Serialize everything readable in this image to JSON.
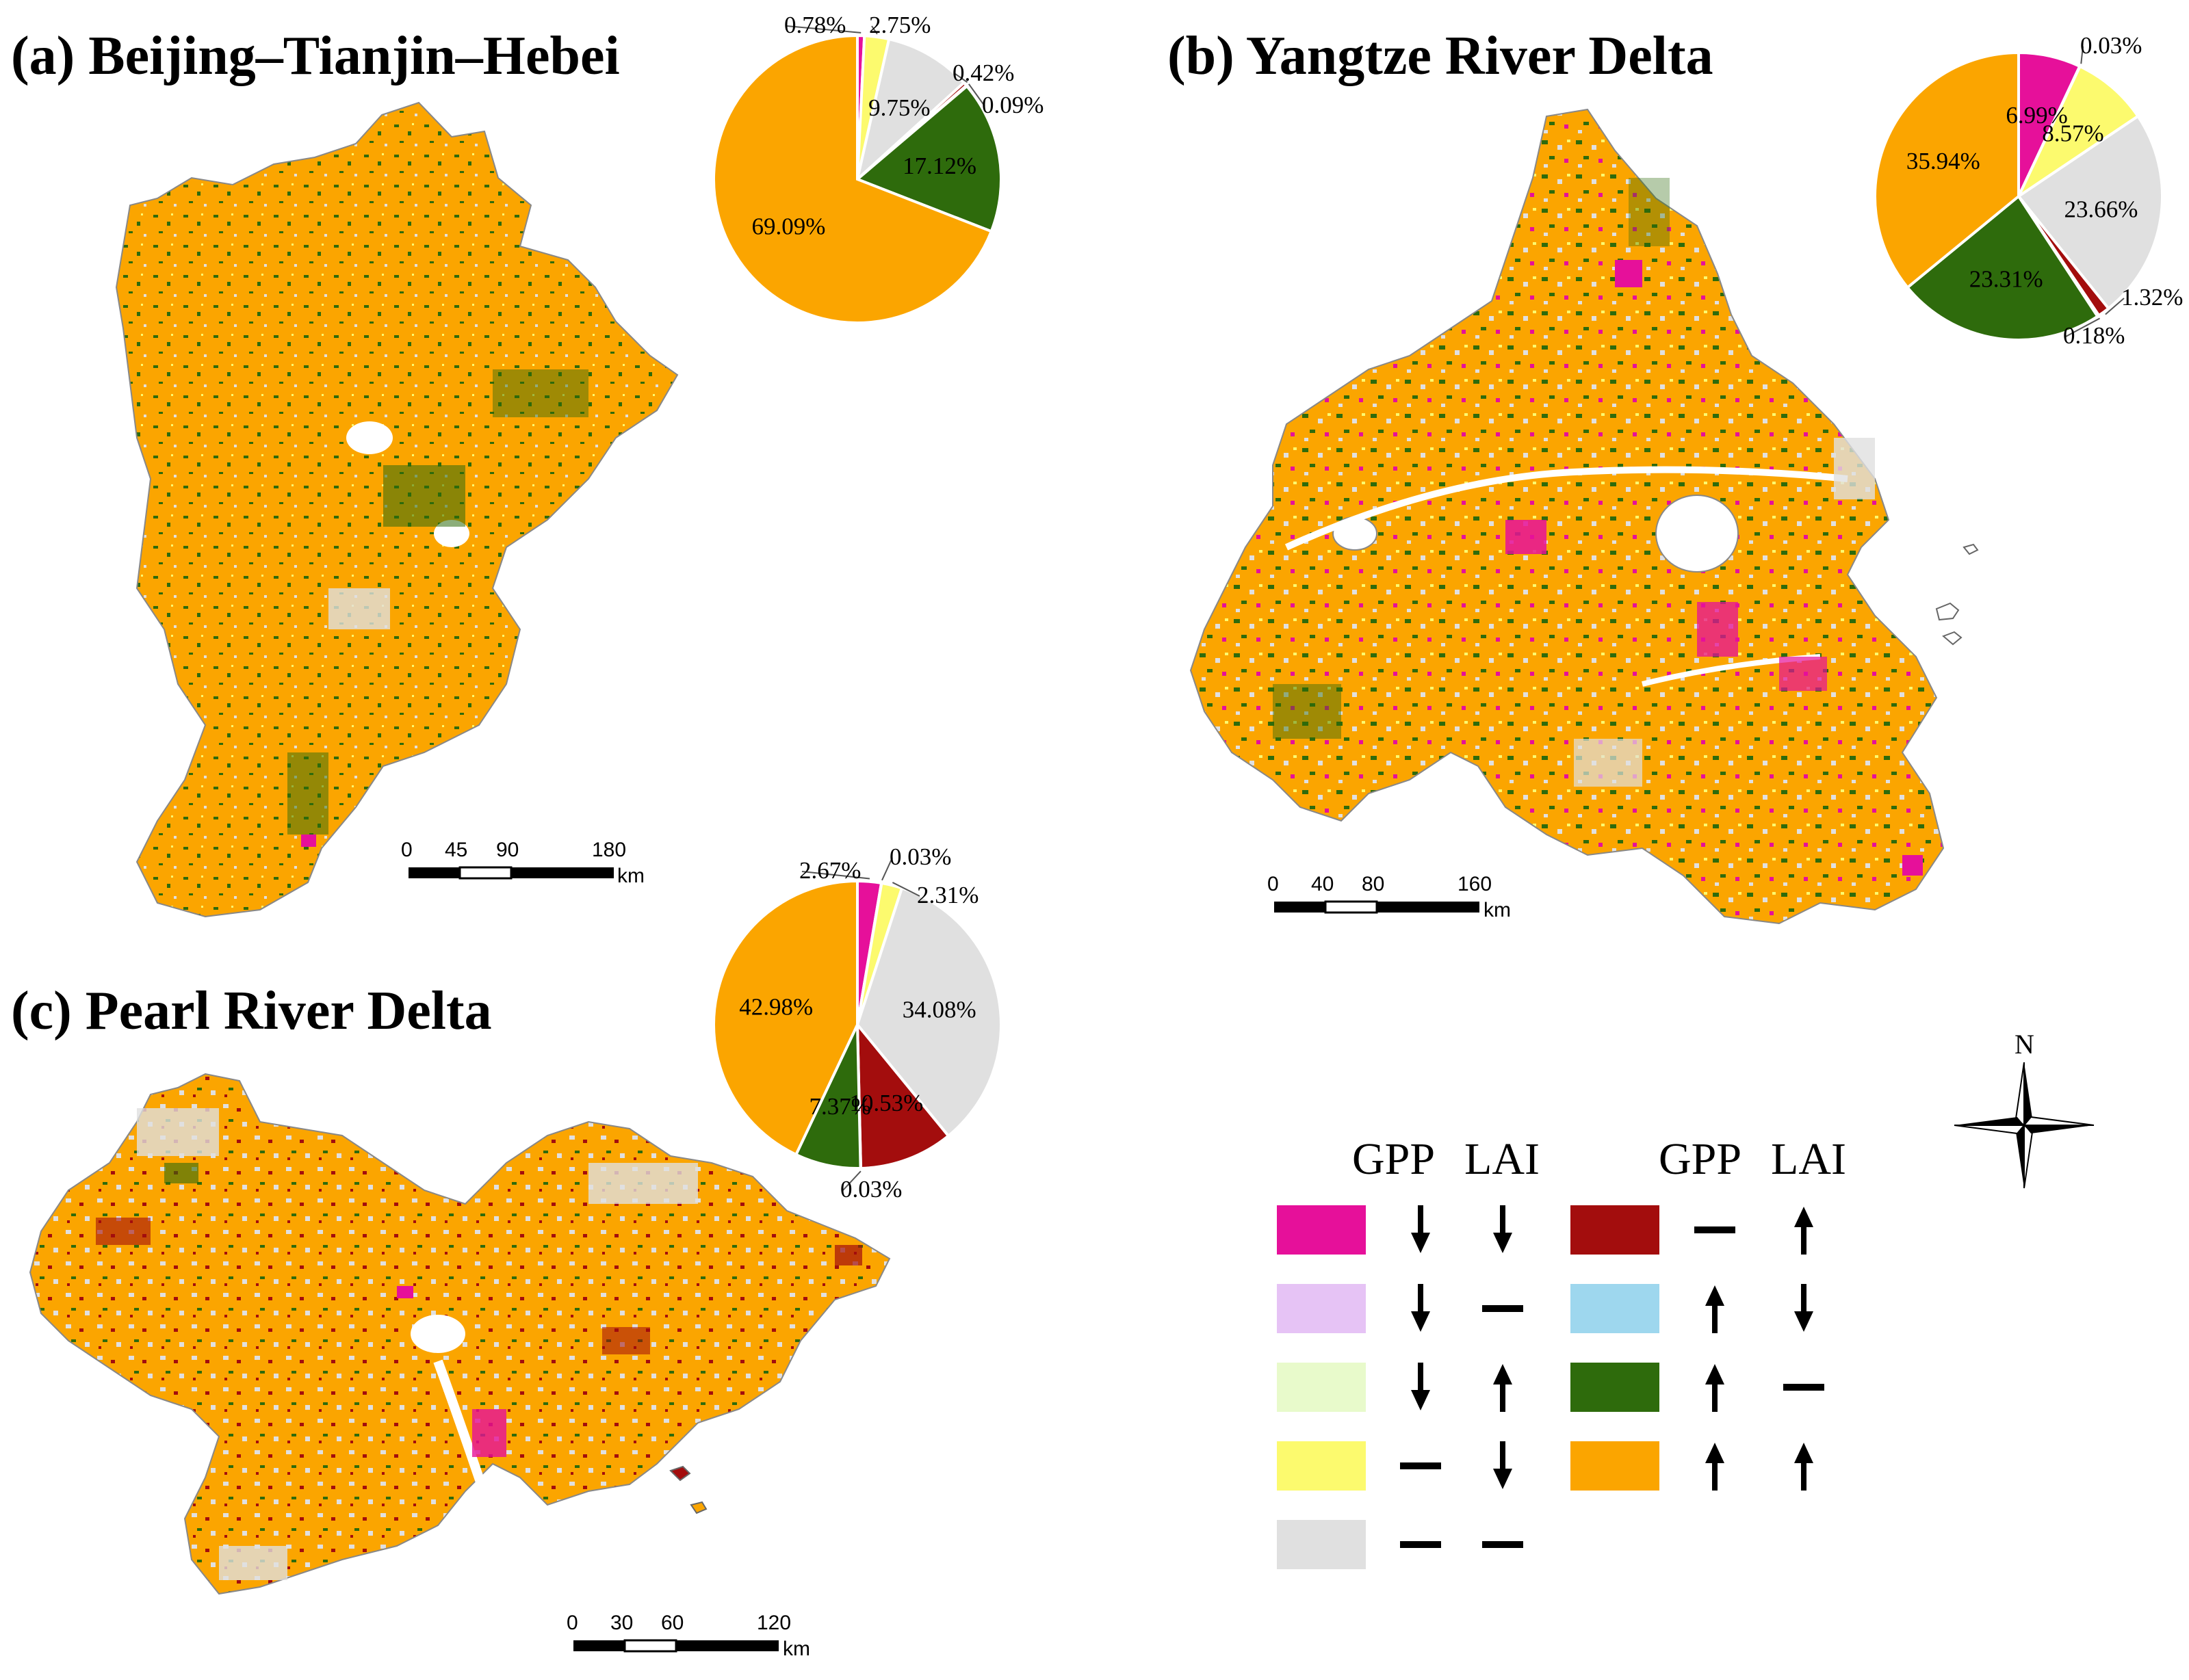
{
  "colors": {
    "magenta": "#E6109A",
    "lavender": "#E6C3F5",
    "palegreen": "#E8FACB",
    "yellow": "#FCFA6E",
    "lightgray": "#E0E0E0",
    "darkred": "#A30D0D",
    "skyblue": "#9ED7EE",
    "darkgreen": "#2E6B0C",
    "orange": "#FBA500"
  },
  "panels": {
    "a": {
      "title": "(a) Beijing–Tianjin–Hebei",
      "scale": {
        "ticks": [
          "0",
          "45",
          "90",
          "180"
        ],
        "unit": "km"
      }
    },
    "b": {
      "title": "(b) Yangtze River Delta",
      "scale": {
        "ticks": [
          "0",
          "40",
          "80",
          "160"
        ],
        "unit": "km"
      }
    },
    "c": {
      "title": "(c) Pearl River Delta",
      "scale": {
        "ticks": [
          "0",
          "30",
          "60",
          "120"
        ],
        "unit": "km"
      }
    }
  },
  "chart_data": [
    {
      "type": "pie",
      "title": "(a) Beijing–Tianjin–Hebei",
      "slices": [
        {
          "class": "magenta",
          "value": 0.78,
          "label": "0.78%"
        },
        {
          "class": "yellow",
          "value": 2.75,
          "label": "2.75%"
        },
        {
          "class": "lightgray",
          "value": 9.75,
          "label": "9.75%"
        },
        {
          "class": "darkred",
          "value": 0.42,
          "label": "0.42%"
        },
        {
          "class": "skyblue",
          "value": 0.09,
          "label": "0.09%"
        },
        {
          "class": "darkgreen",
          "value": 17.12,
          "label": "17.12%"
        },
        {
          "class": "orange",
          "value": 69.09,
          "label": "69.09%"
        }
      ]
    },
    {
      "type": "pie",
      "title": "(b) Yangtze River Delta",
      "slices": [
        {
          "class": "magenta",
          "value": 6.99,
          "label": "6.99%"
        },
        {
          "class": "palegreen",
          "value": 0.03,
          "label": "0.03%"
        },
        {
          "class": "yellow",
          "value": 8.57,
          "label": "8.57%"
        },
        {
          "class": "lightgray",
          "value": 23.66,
          "label": "23.66%"
        },
        {
          "class": "darkred",
          "value": 1.32,
          "label": "1.32%"
        },
        {
          "class": "skyblue",
          "value": 0.18,
          "label": "0.18%"
        },
        {
          "class": "darkgreen",
          "value": 23.31,
          "label": "23.31%"
        },
        {
          "class": "orange",
          "value": 35.94,
          "label": "35.94%"
        }
      ]
    },
    {
      "type": "pie",
      "title": "(c) Pearl River Delta",
      "slices": [
        {
          "class": "magenta",
          "value": 2.67,
          "label": "2.67%"
        },
        {
          "class": "palegreen",
          "value": 0.03,
          "label": "0.03%"
        },
        {
          "class": "yellow",
          "value": 2.31,
          "label": "2.31%"
        },
        {
          "class": "lightgray",
          "value": 34.08,
          "label": "34.08%"
        },
        {
          "class": "darkred",
          "value": 10.53,
          "label": "10.53%"
        },
        {
          "class": "skyblue",
          "value": 0.03,
          "label": "0.03%"
        },
        {
          "class": "darkgreen",
          "value": 7.37,
          "label": "7.37%"
        },
        {
          "class": "orange",
          "value": 42.98,
          "label": "42.98%"
        }
      ]
    }
  ],
  "legend": {
    "header_gpp": "GPP",
    "header_lai": "LAI",
    "left": [
      {
        "class": "magenta",
        "gpp": "down",
        "lai": "down"
      },
      {
        "class": "lavender",
        "gpp": "down",
        "lai": "flat"
      },
      {
        "class": "palegreen",
        "gpp": "down",
        "lai": "up"
      },
      {
        "class": "yellow",
        "gpp": "flat",
        "lai": "down"
      },
      {
        "class": "lightgray",
        "gpp": "flat",
        "lai": "flat"
      }
    ],
    "right": [
      {
        "class": "darkred",
        "gpp": "flat",
        "lai": "up"
      },
      {
        "class": "skyblue",
        "gpp": "up",
        "lai": "down"
      },
      {
        "class": "darkgreen",
        "gpp": "up",
        "lai": "flat"
      },
      {
        "class": "orange",
        "gpp": "up",
        "lai": "up"
      }
    ]
  },
  "north": {
    "label": "N"
  }
}
